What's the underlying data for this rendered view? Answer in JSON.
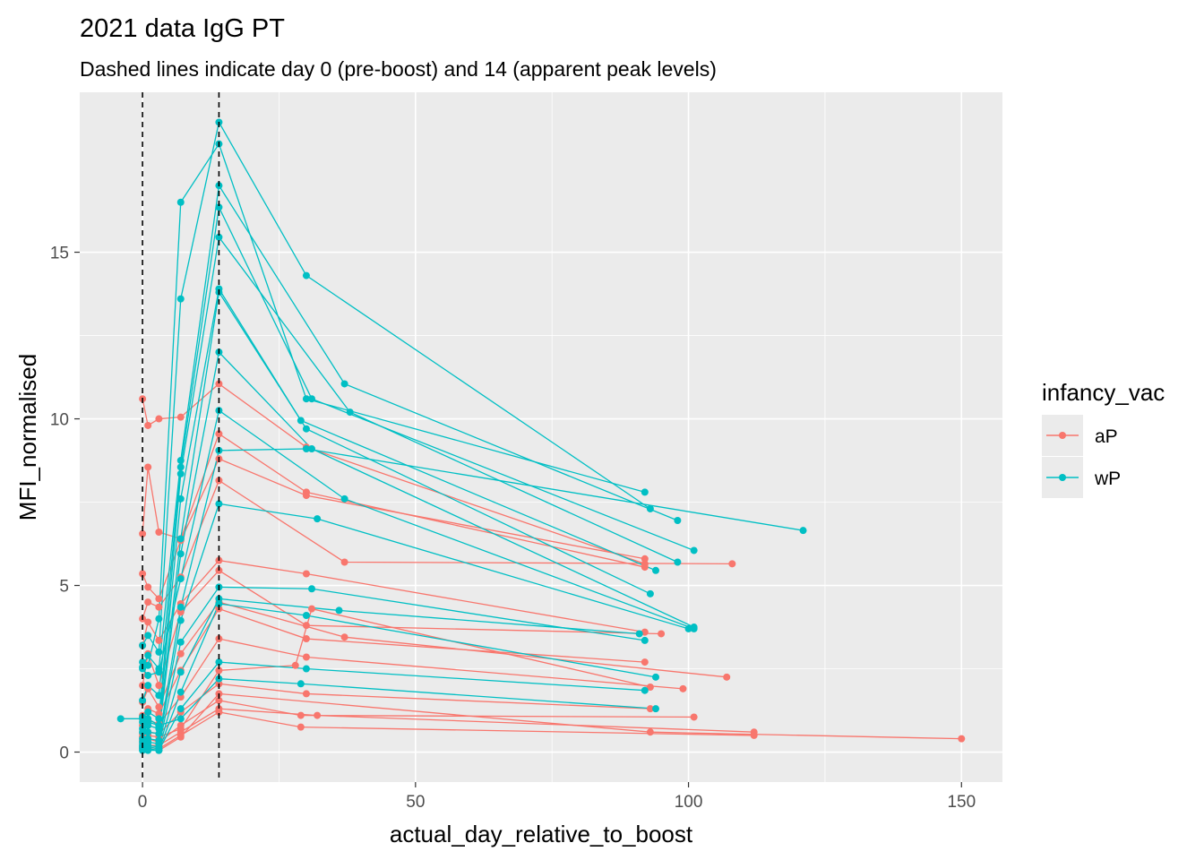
{
  "chart_data": {
    "type": "line",
    "title": "2021 data IgG PT",
    "subtitle": "Dashed lines indicate day 0 (pre-boost) and 14 (apparent peak levels)",
    "xlabel": "actual_day_relative_to_boost",
    "ylabel": "MFI_normalised",
    "xlim": [
      -11.5,
      157.5
    ],
    "ylim": [
      -0.9,
      19.8
    ],
    "x_ticks": [
      0,
      50,
      100,
      150
    ],
    "y_ticks": [
      0,
      5,
      10,
      15
    ],
    "grid": true,
    "reference_lines": [
      0,
      14
    ],
    "legend": {
      "title": "infancy_vac",
      "position": "right",
      "entries": [
        {
          "label": "aP",
          "color": "#F8766D"
        },
        {
          "label": "wP",
          "color": "#00BFC4"
        }
      ]
    },
    "series": [
      {
        "group": "aP",
        "color": "#F8766D",
        "points": [
          [
            0,
            10.6
          ],
          [
            1,
            9.8
          ],
          [
            3,
            10.0
          ],
          [
            7,
            10.05
          ],
          [
            14,
            11.05
          ],
          [
            30,
            9.15
          ],
          [
            92,
            5.65
          ]
        ]
      },
      {
        "group": "aP",
        "color": "#F8766D",
        "points": [
          [
            0,
            6.55
          ],
          [
            1,
            8.55
          ],
          [
            3,
            6.6
          ],
          [
            7,
            6.4
          ],
          [
            14,
            9.55
          ],
          [
            30,
            7.8
          ],
          [
            92,
            5.55
          ]
        ]
      },
      {
        "group": "aP",
        "color": "#F8766D",
        "points": [
          [
            0,
            5.35
          ],
          [
            1,
            4.95
          ],
          [
            3,
            4.6
          ],
          [
            7,
            6.35
          ],
          [
            14,
            8.8
          ],
          [
            30,
            7.7
          ],
          [
            92,
            5.8
          ]
        ]
      },
      {
        "group": "aP",
        "color": "#F8766D",
        "points": [
          [
            0,
            4.0
          ],
          [
            1,
            4.5
          ],
          [
            3,
            4.35
          ],
          [
            7,
            5.25
          ],
          [
            14,
            8.15
          ],
          [
            37,
            5.7
          ],
          [
            108,
            5.65
          ]
        ]
      },
      {
        "group": "aP",
        "color": "#F8766D",
        "points": [
          [
            0,
            3.2
          ],
          [
            1,
            3.9
          ],
          [
            3,
            3.35
          ],
          [
            7,
            4.45
          ],
          [
            14,
            5.75
          ],
          [
            30,
            5.35
          ],
          [
            92,
            3.6
          ]
        ]
      },
      {
        "group": "aP",
        "color": "#F8766D",
        "points": [
          [
            0,
            2.0
          ],
          [
            1,
            2.95
          ],
          [
            3,
            2.0
          ],
          [
            7,
            4.2
          ],
          [
            14,
            5.45
          ],
          [
            30,
            3.8
          ],
          [
            95,
            3.55
          ]
        ]
      },
      {
        "group": "aP",
        "color": "#F8766D",
        "points": [
          [
            0,
            1.5
          ],
          [
            1,
            1.9
          ],
          [
            3,
            1.35
          ],
          [
            7,
            2.95
          ],
          [
            14,
            4.5
          ],
          [
            37,
            3.45
          ],
          [
            107,
            2.25
          ]
        ]
      },
      {
        "group": "aP",
        "color": "#F8766D",
        "points": [
          [
            0,
            1.1
          ],
          [
            1,
            1.3
          ],
          [
            3,
            1.15
          ],
          [
            7,
            2.45
          ],
          [
            14,
            4.3
          ],
          [
            30,
            3.4
          ],
          [
            92,
            2.7
          ]
        ]
      },
      {
        "group": "aP",
        "color": "#F8766D",
        "points": [
          [
            0,
            0.8
          ],
          [
            1,
            0.95
          ],
          [
            3,
            0.85
          ],
          [
            7,
            1.65
          ],
          [
            14,
            3.4
          ],
          [
            30,
            2.85
          ],
          [
            99,
            1.9
          ]
        ]
      },
      {
        "group": "aP",
        "color": "#F8766D",
        "points": [
          [
            0,
            0.55
          ],
          [
            1,
            0.6
          ],
          [
            3,
            0.55
          ],
          [
            7,
            1.2
          ],
          [
            14,
            2.05
          ],
          [
            30,
            1.75
          ],
          [
            93,
            1.3
          ]
        ]
      },
      {
        "group": "aP",
        "color": "#F8766D",
        "points": [
          [
            0,
            0.35
          ],
          [
            1,
            0.4
          ],
          [
            3,
            0.3
          ],
          [
            7,
            0.8
          ],
          [
            14,
            1.55
          ],
          [
            29,
            1.1
          ],
          [
            101,
            1.05
          ]
        ]
      },
      {
        "group": "aP",
        "color": "#F8766D",
        "points": [
          [
            0,
            0.25
          ],
          [
            1,
            0.2
          ],
          [
            3,
            0.2
          ],
          [
            7,
            0.6
          ],
          [
            14,
            1.3
          ],
          [
            32,
            1.1
          ],
          [
            112,
            0.6
          ]
        ]
      },
      {
        "group": "aP",
        "color": "#F8766D",
        "points": [
          [
            0,
            0.15
          ],
          [
            1,
            0.15
          ],
          [
            3,
            0.1
          ],
          [
            7,
            0.5
          ],
          [
            14,
            1.2
          ],
          [
            29,
            0.75
          ],
          [
            112,
            0.5
          ]
        ]
      },
      {
        "group": "aP",
        "color": "#F8766D",
        "points": [
          [
            0,
            0.1
          ],
          [
            1,
            0.1
          ],
          [
            3,
            0.05
          ],
          [
            7,
            0.45
          ],
          [
            14,
            1.75
          ],
          [
            93,
            0.6
          ],
          [
            150,
            0.4
          ]
        ]
      },
      {
        "group": "aP",
        "color": "#F8766D",
        "points": [
          [
            0,
            0.45
          ],
          [
            1,
            0.5
          ],
          [
            3,
            0.45
          ],
          [
            7,
            0.7
          ],
          [
            14,
            2.45
          ],
          [
            28,
            2.6
          ],
          [
            31,
            4.3
          ],
          [
            93,
            1.95
          ]
        ]
      },
      {
        "group": "wP",
        "color": "#00BFC4",
        "points": [
          [
            0,
            3.2
          ],
          [
            1,
            3.5
          ],
          [
            3,
            3.0
          ],
          [
            7,
            13.6
          ],
          [
            14,
            18.9
          ],
          [
            30,
            14.3
          ],
          [
            93,
            7.3
          ]
        ]
      },
      {
        "group": "wP",
        "color": "#00BFC4",
        "points": [
          [
            0,
            2.7
          ],
          [
            1,
            2.6
          ],
          [
            3,
            4.0
          ],
          [
            7,
            16.5
          ],
          [
            14,
            18.25
          ],
          [
            30,
            10.6
          ],
          [
            92,
            7.8
          ]
        ]
      },
      {
        "group": "wP",
        "color": "#00BFC4",
        "points": [
          [
            0,
            2.55
          ],
          [
            1,
            2.9
          ],
          [
            3,
            2.5
          ],
          [
            7,
            8.75
          ],
          [
            14,
            17.0
          ],
          [
            37,
            11.05
          ],
          [
            98,
            6.95
          ]
        ]
      },
      {
        "group": "wP",
        "color": "#00BFC4",
        "points": [
          [
            0,
            1.55
          ],
          [
            1,
            2.0
          ],
          [
            3,
            1.7
          ],
          [
            7,
            8.55
          ],
          [
            14,
            16.35
          ],
          [
            31,
            10.6
          ],
          [
            101,
            6.05
          ]
        ]
      },
      {
        "group": "wP",
        "color": "#00BFC4",
        "points": [
          [
            0,
            1.05
          ],
          [
            1,
            1.2
          ],
          [
            3,
            1.0
          ],
          [
            7,
            8.35
          ],
          [
            14,
            15.45
          ],
          [
            38,
            10.2
          ],
          [
            98,
            5.7
          ]
        ]
      },
      {
        "group": "wP",
        "color": "#00BFC4",
        "points": [
          [
            0,
            0.9
          ],
          [
            1,
            1.0
          ],
          [
            3,
            0.8
          ],
          [
            7,
            7.6
          ],
          [
            14,
            13.9
          ],
          [
            29,
            9.95
          ],
          [
            94,
            5.45
          ]
        ]
      },
      {
        "group": "wP",
        "color": "#00BFC4",
        "points": [
          [
            0,
            0.7
          ],
          [
            1,
            0.8
          ],
          [
            3,
            0.7
          ],
          [
            7,
            6.4
          ],
          [
            14,
            13.8
          ],
          [
            30,
            9.7
          ],
          [
            93,
            4.75
          ]
        ]
      },
      {
        "group": "wP",
        "color": "#00BFC4",
        "points": [
          [
            0,
            0.6
          ],
          [
            1,
            0.6
          ],
          [
            3,
            0.55
          ],
          [
            7,
            5.95
          ],
          [
            14,
            12.0
          ],
          [
            31,
            9.1
          ],
          [
            101,
            3.75
          ]
        ]
      },
      {
        "group": "wP",
        "color": "#00BFC4",
        "points": [
          [
            0,
            2.5
          ],
          [
            1,
            2.3
          ],
          [
            3,
            2.4
          ],
          [
            7,
            5.2
          ],
          [
            14,
            10.25
          ],
          [
            37,
            7.6
          ],
          [
            101,
            3.7
          ]
        ]
      },
      {
        "group": "wP",
        "color": "#00BFC4",
        "points": [
          [
            0,
            0.4
          ],
          [
            1,
            0.4
          ],
          [
            3,
            0.35
          ],
          [
            7,
            4.35
          ],
          [
            14,
            9.05
          ],
          [
            30,
            9.1
          ],
          [
            121,
            6.65
          ]
        ]
      },
      {
        "group": "wP",
        "color": "#00BFC4",
        "points": [
          [
            0,
            0.3
          ],
          [
            1,
            0.3
          ],
          [
            3,
            0.25
          ],
          [
            7,
            3.95
          ],
          [
            14,
            7.45
          ],
          [
            32,
            7.0
          ],
          [
            100,
            3.7
          ]
        ]
      },
      {
        "group": "wP",
        "color": "#00BFC4",
        "points": [
          [
            0,
            0.2
          ],
          [
            1,
            0.2
          ],
          [
            3,
            0.15
          ],
          [
            7,
            3.3
          ],
          [
            14,
            4.95
          ],
          [
            31,
            4.9
          ],
          [
            92,
            3.35
          ]
        ]
      },
      {
        "group": "wP",
        "color": "#00BFC4",
        "points": [
          [
            0,
            0.15
          ],
          [
            1,
            0.15
          ],
          [
            3,
            0.1
          ],
          [
            7,
            2.4
          ],
          [
            14,
            4.6
          ],
          [
            36,
            4.25
          ],
          [
            91,
            3.55
          ]
        ]
      },
      {
        "group": "wP",
        "color": "#00BFC4",
        "points": [
          [
            0,
            0.1
          ],
          [
            1,
            0.1
          ],
          [
            3,
            0.05
          ],
          [
            7,
            1.8
          ],
          [
            14,
            4.45
          ],
          [
            30,
            4.1
          ],
          [
            94,
            2.25
          ]
        ]
      },
      {
        "group": "wP",
        "color": "#00BFC4",
        "points": [
          [
            0,
            0.05
          ],
          [
            1,
            0.05
          ],
          [
            3,
            0.05
          ],
          [
            7,
            1.3
          ],
          [
            14,
            2.7
          ],
          [
            30,
            2.5
          ],
          [
            92,
            1.85
          ]
        ]
      },
      {
        "group": "wP",
        "color": "#00BFC4",
        "points": [
          [
            -4,
            1.0
          ],
          [
            0,
            1.0
          ],
          [
            1,
            0.9
          ],
          [
            3,
            0.8
          ],
          [
            7,
            1.0
          ],
          [
            14,
            2.2
          ],
          [
            29,
            2.05
          ],
          [
            94,
            1.3
          ]
        ]
      }
    ]
  }
}
